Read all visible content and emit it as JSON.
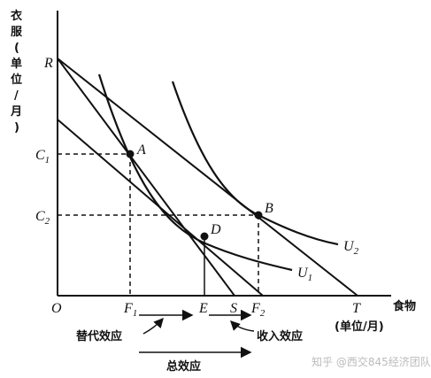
{
  "axes": {
    "y_label_lines": [
      "衣",
      "服",
      "(",
      "单",
      "位",
      "/",
      "月",
      ")"
    ],
    "x_label_line1": "食物",
    "x_label_line2": "(单位/月)"
  },
  "points": {
    "R": "R",
    "O": "O",
    "T": "T",
    "C1_main": "C",
    "C1_sub": "1",
    "C2_main": "C",
    "C2_sub": "2",
    "F1_main": "F",
    "F1_sub": "1",
    "F2_main": "F",
    "F2_sub": "2",
    "E": "E",
    "S": "S",
    "A": "A",
    "B": "B",
    "D": "D",
    "U1_main": "U",
    "U1_sub": "1",
    "U2_main": "U",
    "U2_sub": "2"
  },
  "effects": {
    "substitution": "替代效应",
    "income": "收入效应",
    "total": "总效应"
  },
  "watermark": "知乎 @西交845经济团队",
  "colors": {
    "ink": "#111111",
    "watermark": "#bbbbbb",
    "background": "#ffffff"
  }
}
